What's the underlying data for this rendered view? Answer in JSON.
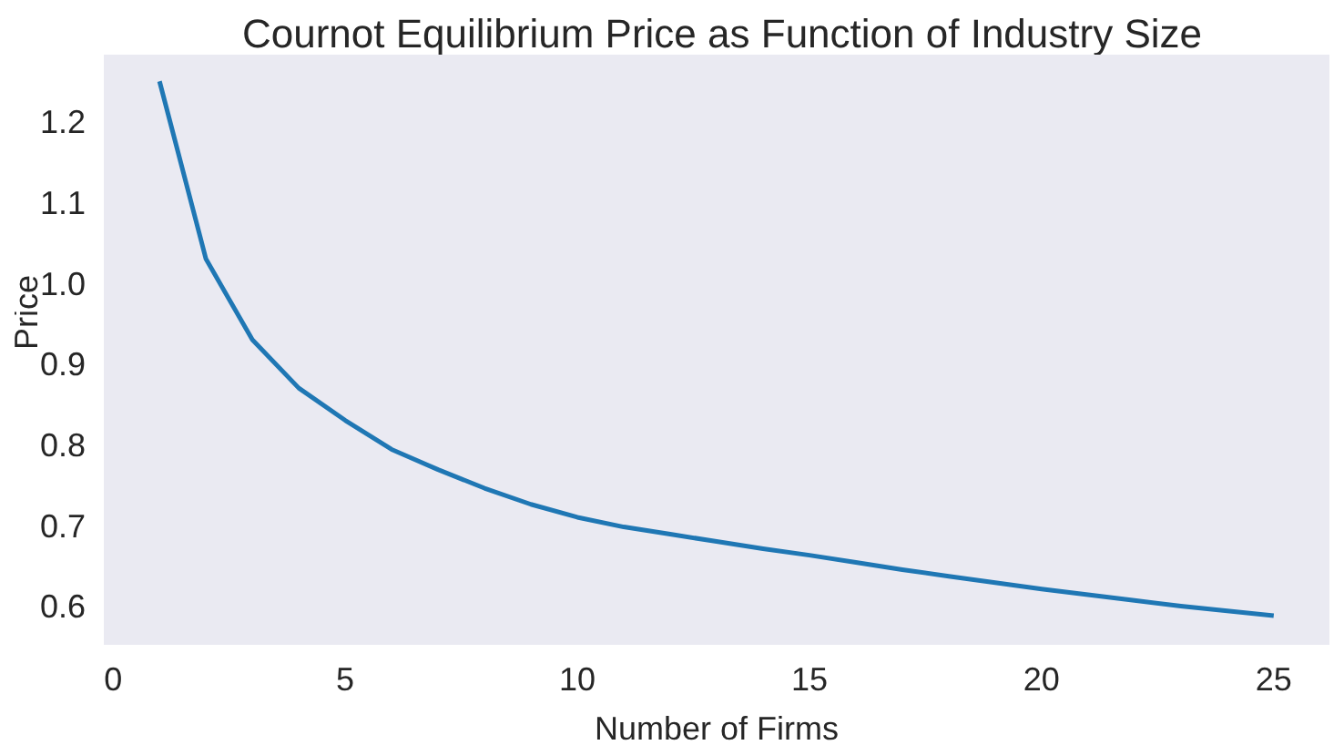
{
  "chart_data": {
    "type": "line",
    "title": "Cournot Equilibrium Price as Function of Industry Size",
    "xlabel": "Number of Firms",
    "ylabel": "Price",
    "x": [
      1,
      2,
      3,
      4,
      5,
      6,
      7,
      8,
      9,
      10,
      11,
      12,
      13,
      14,
      15,
      16,
      17,
      18,
      19,
      20,
      21,
      22,
      23,
      24,
      25
    ],
    "series": [
      {
        "color": "#1f77b4",
        "values": [
          1.25,
          1.03,
          0.93,
          0.87,
          0.83,
          0.794,
          0.769,
          0.746,
          0.726,
          0.71,
          0.698,
          0.689,
          0.68,
          0.671,
          0.663,
          0.654,
          0.645,
          0.637,
          0.629,
          0.621,
          0.614,
          0.607,
          0.6,
          0.594,
          0.588
        ]
      }
    ],
    "xlim": [
      -0.2,
      26.2
    ],
    "xticks": [
      0,
      5,
      10,
      15,
      20,
      25
    ],
    "ylim": [
      0.552,
      1.283
    ],
    "yticks": [
      0.6,
      0.7,
      0.8,
      0.9,
      {
        "value": 1,
        "label": "1.0"
      },
      1.1,
      1.2
    ],
    "grid": false,
    "legend": false,
    "marker": "none",
    "line_style": "solid"
  }
}
